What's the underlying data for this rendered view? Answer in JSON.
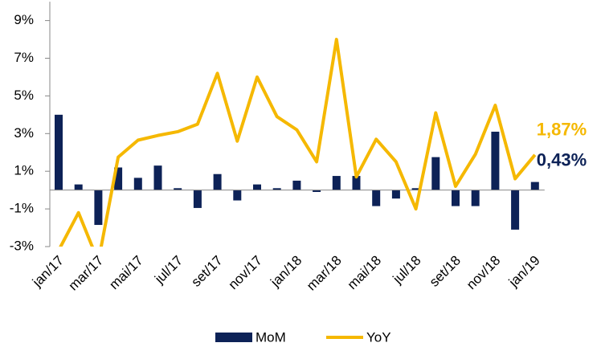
{
  "chart_data": {
    "type": "bar-line",
    "categories": [
      "jan/17",
      null,
      "mar/17",
      null,
      "mai/17",
      null,
      "jul/17",
      null,
      "set/17",
      null,
      "nov/17",
      null,
      "jan/18",
      null,
      "mar/18",
      null,
      "mai/18",
      null,
      "jul/18",
      null,
      "set/18",
      null,
      "nov/18",
      null,
      "jan/19"
    ],
    "series": [
      {
        "name": "MoM",
        "type": "bar",
        "color": "#0d2257",
        "values": [
          4.0,
          0.3,
          -1.85,
          1.2,
          0.65,
          1.3,
          0.1,
          -0.95,
          0.85,
          -0.55,
          0.3,
          0.1,
          0.5,
          -0.1,
          0.75,
          0.75,
          -0.85,
          -0.45,
          0.1,
          1.75,
          -0.85,
          -0.85,
          3.1,
          -2.1,
          0.43
        ],
        "value_labels": [
          null,
          null,
          null,
          null,
          null,
          null,
          null,
          null,
          null,
          null,
          null,
          null,
          null,
          null,
          null,
          null,
          null,
          null,
          null,
          null,
          null,
          null,
          null,
          null,
          "0,43%"
        ]
      },
      {
        "name": "YoY",
        "type": "line",
        "color": "#f5b800",
        "values": [
          -3.2,
          -1.2,
          -3.8,
          1.75,
          2.65,
          2.9,
          3.1,
          3.5,
          6.2,
          2.6,
          6.0,
          3.9,
          3.2,
          1.5,
          8.0,
          0.7,
          2.7,
          1.5,
          -1.0,
          4.1,
          0.2,
          1.9,
          4.5,
          0.6,
          1.87
        ],
        "value_labels": [
          null,
          null,
          null,
          null,
          null,
          null,
          null,
          null,
          null,
          null,
          null,
          null,
          null,
          null,
          null,
          null,
          null,
          null,
          null,
          null,
          null,
          null,
          null,
          null,
          "1,87%"
        ]
      }
    ],
    "ylim": [
      -3,
      10
    ],
    "yticks": [
      {
        "value": -3,
        "label": "-3%"
      },
      {
        "value": -1,
        "label": "-1%"
      },
      {
        "value": 1,
        "label": "1%"
      },
      {
        "value": 3,
        "label": "3%"
      },
      {
        "value": 5,
        "label": "5%"
      },
      {
        "value": 7,
        "label": "7%"
      },
      {
        "value": 9,
        "label": "9%"
      }
    ],
    "legend": "bottom"
  }
}
